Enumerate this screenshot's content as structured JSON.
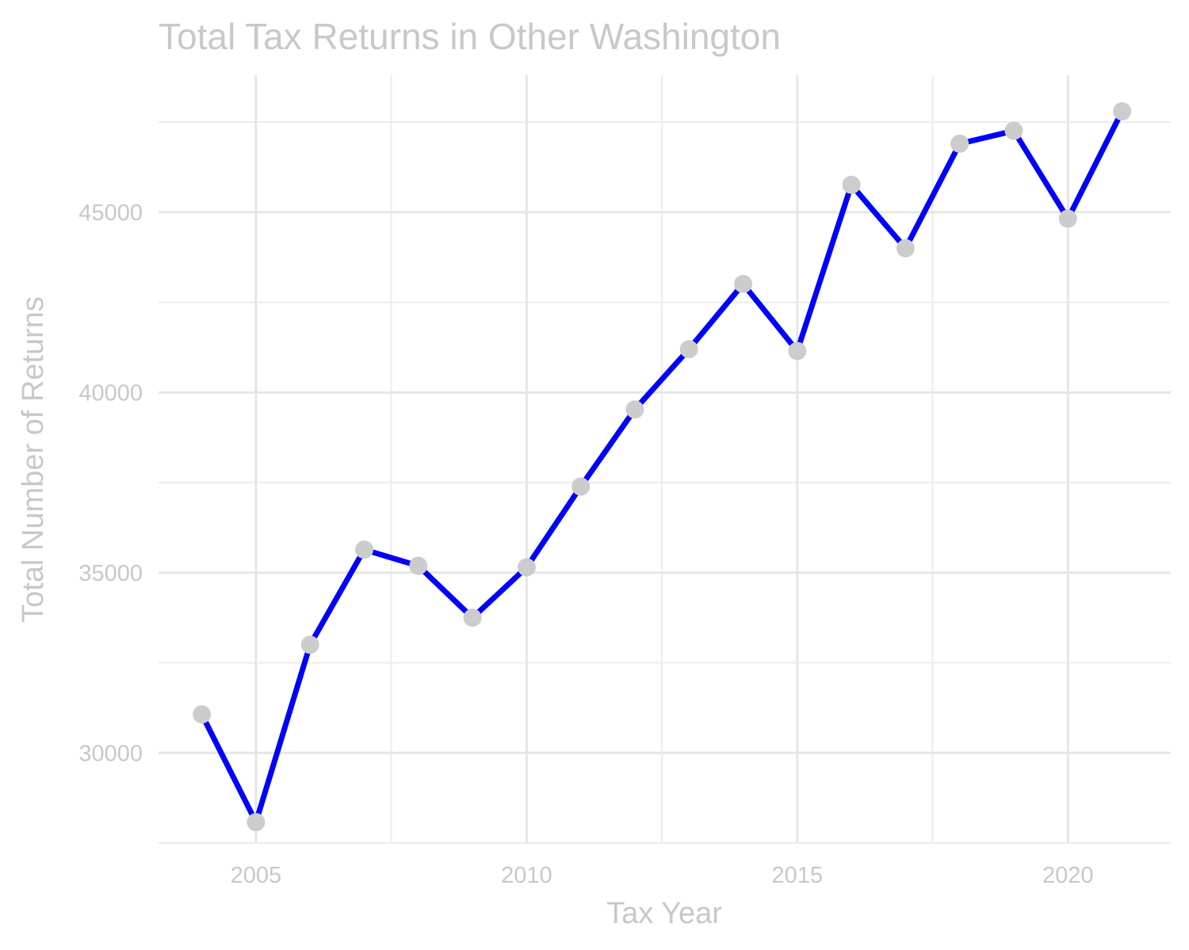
{
  "chart_data": {
    "type": "line",
    "title": "Total Tax Returns in Other Washington",
    "xlabel": "Tax Year",
    "ylabel": "Total Number of Returns",
    "x": [
      2004,
      2005,
      2006,
      2007,
      2008,
      2009,
      2010,
      2011,
      2012,
      2013,
      2014,
      2015,
      2016,
      2017,
      2018,
      2019,
      2020,
      2021
    ],
    "series": [
      {
        "values": [
          31070,
          28080,
          33000,
          35640,
          35190,
          33750,
          35150,
          37390,
          39530,
          41200,
          43010,
          41150,
          45760,
          44000,
          46900,
          47260,
          44820,
          47800
        ]
      }
    ],
    "xlim": [
      2003.2,
      2021.9
    ],
    "ylim": [
      27500,
      48800
    ],
    "x_ticks": [
      2005,
      2010,
      2015,
      2020
    ],
    "y_ticks": [
      30000,
      35000,
      40000,
      45000
    ],
    "x_tick_labels": [
      "2005",
      "2010",
      "2015",
      "2020"
    ],
    "y_tick_labels": [
      "30000",
      "35000",
      "40000",
      "45000"
    ],
    "x_minor_ticks": [
      2007.5,
      2012.5,
      2017.5
    ],
    "y_minor_ticks": [
      27500,
      32500,
      37500,
      42500,
      47500
    ],
    "grid": true,
    "legend": "none",
    "colors": {
      "line": "#0000ff",
      "point": "#cccccc",
      "text": "#c8c8c8",
      "grid": "#e6e6e6"
    }
  }
}
